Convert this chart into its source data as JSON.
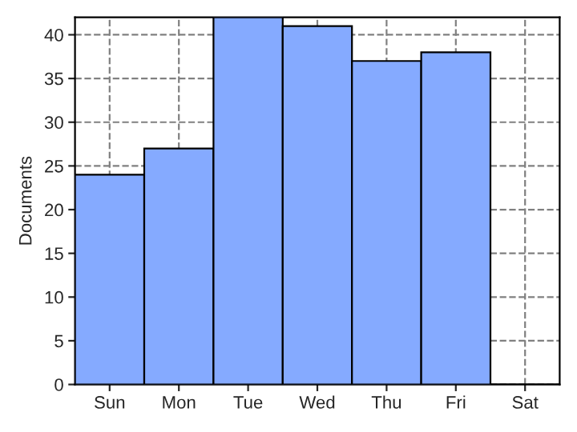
{
  "chart_data": {
    "type": "bar",
    "ylabel": "Documents",
    "categories": [
      "Sun",
      "Mon",
      "Tue",
      "Wed",
      "Thu",
      "Fri",
      "Sat"
    ],
    "values": [
      24,
      27,
      42,
      41,
      37,
      38,
      0
    ],
    "color": "#85aaff",
    "ylim": [
      0,
      42
    ],
    "yticks": [
      0,
      5,
      10,
      15,
      20,
      25,
      30,
      35,
      40
    ],
    "grid": true
  }
}
